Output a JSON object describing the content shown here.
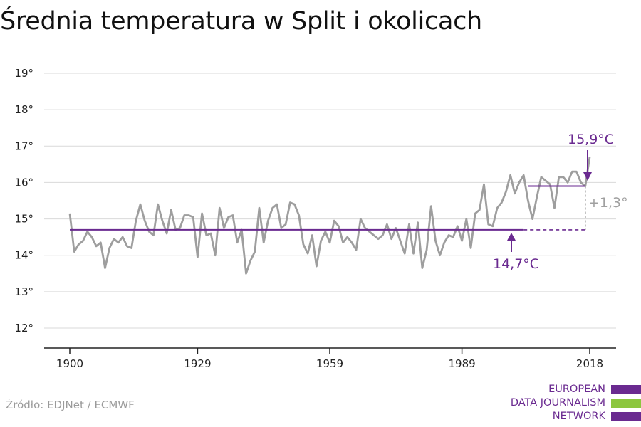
{
  "title": "Średnia temperatura w Split i okolicach",
  "source": "Źródło: EDJNet / ECMWF",
  "logo": {
    "lines": [
      "EUROPEAN",
      "DATA JOURNALISM",
      "NETWORK"
    ],
    "colors": [
      "#6a2a90",
      "#8cc63f",
      "#6a2a90"
    ]
  },
  "colors": {
    "series": "#9e9e9e",
    "average": "#6a2a90",
    "grid": "#d9d9d9",
    "axis": "#222222",
    "difference": "#9e9e9e"
  },
  "chart_data": {
    "type": "line",
    "title": "Średnia temperatura w Split i okolicach",
    "xlabel": "",
    "ylabel": "",
    "xlim": [
      1900,
      2018
    ],
    "ylim": [
      12,
      19
    ],
    "x_ticks": [
      1900,
      1929,
      1959,
      1989,
      2018
    ],
    "y_ticks": [
      {
        "value": 12,
        "label": "12°"
      },
      {
        "value": 13,
        "label": "13°"
      },
      {
        "value": 14,
        "label": "14°"
      },
      {
        "value": 15,
        "label": "15°"
      },
      {
        "value": 16,
        "label": "16°"
      },
      {
        "value": 17,
        "label": "17°"
      },
      {
        "value": 18,
        "label": "18°"
      },
      {
        "value": 19,
        "label": "19°"
      }
    ],
    "grid": true,
    "series": [
      {
        "x": [
          1900,
          1901,
          1902,
          1903,
          1904,
          1905,
          1906,
          1907,
          1908,
          1909,
          1910,
          1911,
          1912,
          1913,
          1914,
          1915,
          1916,
          1917,
          1918,
          1919,
          1920,
          1921,
          1922,
          1923,
          1924,
          1925,
          1926,
          1927,
          1928,
          1929,
          1930,
          1931,
          1932,
          1933,
          1934,
          1935,
          1936,
          1937,
          1938,
          1939,
          1940,
          1941,
          1942,
          1943,
          1944,
          1945,
          1946,
          1947,
          1948,
          1949,
          1950,
          1951,
          1952,
          1953,
          1954,
          1955,
          1956,
          1957,
          1958,
          1959,
          1960,
          1961,
          1962,
          1963,
          1964,
          1965,
          1966,
          1967,
          1968,
          1969,
          1970,
          1971,
          1972,
          1973,
          1974,
          1975,
          1976,
          1977,
          1978,
          1979,
          1980,
          1981,
          1982,
          1983,
          1984,
          1985,
          1986,
          1987,
          1988,
          1989,
          1990,
          1991,
          1992,
          1993,
          1994,
          1995,
          1996,
          1997,
          1998,
          1999,
          2000,
          2001,
          2002,
          2003,
          2004,
          2005,
          2006,
          2007,
          2008,
          2009,
          2010,
          2011,
          2012,
          2013,
          2014,
          2015,
          2016,
          2017,
          2018
        ],
        "values": [
          15.15,
          14.1,
          14.3,
          14.4,
          14.65,
          14.5,
          14.25,
          14.35,
          13.65,
          14.2,
          14.45,
          14.35,
          14.5,
          14.25,
          14.2,
          14.95,
          15.4,
          14.95,
          14.65,
          14.55,
          15.4,
          14.95,
          14.6,
          15.25,
          14.7,
          14.75,
          15.1,
          15.1,
          15.05,
          13.95,
          15.15,
          14.55,
          14.6,
          14.0,
          15.3,
          14.75,
          15.05,
          15.1,
          14.35,
          14.7,
          13.5,
          13.85,
          14.1,
          15.3,
          14.35,
          14.95,
          15.3,
          15.4,
          14.75,
          14.85,
          15.45,
          15.4,
          15.1,
          14.3,
          14.05,
          14.55,
          13.7,
          14.4,
          14.65,
          14.35,
          14.95,
          14.8,
          14.35,
          14.5,
          14.35,
          14.15,
          15.0,
          14.75,
          14.65,
          14.55,
          14.45,
          14.55,
          14.85,
          14.45,
          14.75,
          14.4,
          14.05,
          14.85,
          14.05,
          14.9,
          13.65,
          14.15,
          15.35,
          14.4,
          14.0,
          14.35,
          14.55,
          14.5,
          14.8,
          14.4,
          15.0,
          14.2,
          15.15,
          15.25,
          15.95,
          14.85,
          14.8,
          15.3,
          15.45,
          15.75,
          16.2,
          15.7,
          16.0,
          16.2,
          15.5,
          15.0,
          15.6,
          16.15,
          16.05,
          15.95,
          15.3,
          16.15,
          16.15,
          16.0,
          16.3,
          16.3,
          16.0,
          15.9,
          16.7
        ]
      }
    ],
    "averages": [
      {
        "from": 1900,
        "to": 2003,
        "value": 14.7,
        "label": "14,7°C",
        "extended_to": 2017
      },
      {
        "from": 2004,
        "to": 2017,
        "value": 15.9,
        "label": "15,9°C"
      }
    ],
    "difference": {
      "label": "+1,3°"
    }
  }
}
